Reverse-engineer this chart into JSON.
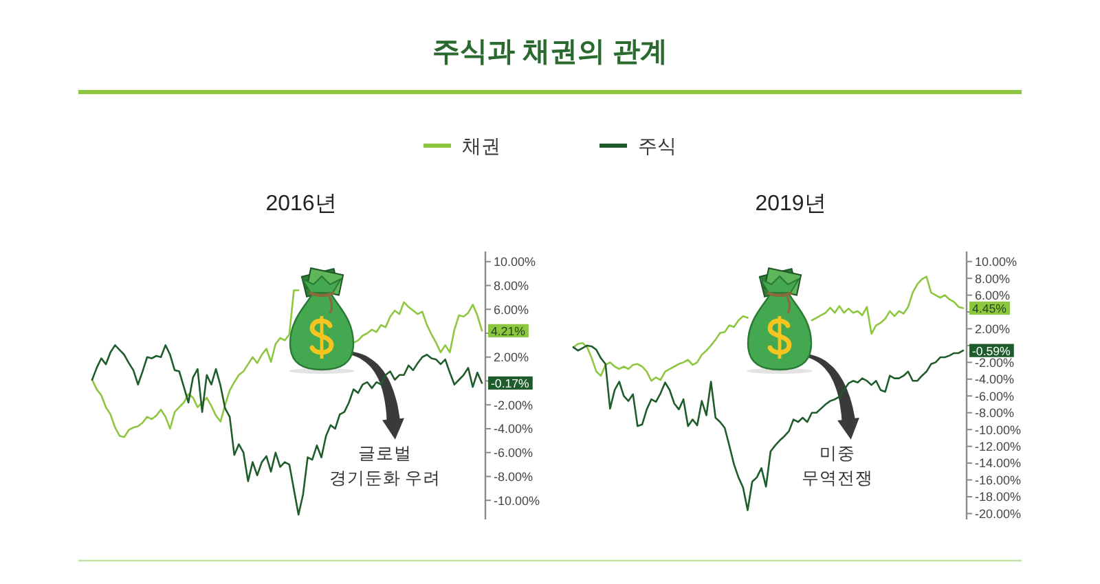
{
  "chart_data": [
    {
      "type": "line",
      "title": "주식과 채권의 관계",
      "subtitle": "2016년",
      "legend": "top",
      "tick_labels": "y",
      "categories": [
        null,
        null,
        null,
        null,
        null,
        null,
        null,
        null,
        null,
        null,
        null,
        null,
        null,
        null,
        null,
        null,
        null,
        null,
        null,
        null,
        null,
        null,
        null,
        null,
        null,
        null,
        null,
        null,
        null,
        null,
        null,
        null,
        null,
        null,
        null,
        null,
        null,
        null,
        null,
        null,
        null,
        null,
        null,
        null,
        null,
        null,
        null,
        null,
        null,
        null,
        null,
        null,
        null,
        null,
        null,
        null,
        null,
        null,
        null,
        null,
        null,
        null,
        null,
        null,
        null,
        null,
        null,
        null,
        null,
        null,
        null,
        null,
        null,
        null,
        null,
        null,
        null,
        null,
        null,
        null,
        null,
        null,
        null,
        null,
        null,
        null
      ],
      "series": [
        {
          "name": "채권",
          "color": "#8dc63f",
          "values": [
            0.1,
            -0.7,
            -1.2,
            -2.2,
            -2.8,
            -3.9,
            -4.6,
            -4.7,
            -4.1,
            -3.9,
            -3.8,
            -3.5,
            -3.0,
            -3.2,
            -2.9,
            -2.4,
            -3.0,
            -4.0,
            -2.6,
            -2.2,
            -1.8,
            -1.1,
            -1.4,
            -2.2,
            -1.8,
            -1.4,
            -2.1,
            -2.9,
            -3.4,
            -2.0,
            -0.8,
            -0.1,
            0.5,
            0.8,
            1.4,
            2.0,
            1.5,
            2.2,
            2.7,
            1.6,
            3.1,
            3.6,
            3.4,
            3.9,
            7.6,
            7.6,
            null,
            null,
            null,
            null,
            null,
            null,
            null,
            null,
            null,
            null,
            null,
            3.2,
            3.4,
            3.8,
            4.0,
            4.3,
            4.1,
            4.7,
            4.5,
            5.4,
            5.9,
            5.6,
            6.6,
            6.2,
            5.9,
            5.6,
            5.8,
            4.7,
            3.9,
            3.2,
            2.4,
            3.0,
            2.4,
            4.3,
            5.5,
            5.4,
            5.7,
            6.4,
            5.5,
            4.21
          ],
          "value_labels": [
            null,
            null,
            null,
            null,
            null,
            null,
            null,
            null,
            null,
            null,
            null,
            null,
            null,
            null,
            null,
            null,
            null,
            null,
            null,
            null,
            null,
            null,
            null,
            null,
            null,
            null,
            null,
            null,
            null,
            null,
            null,
            null,
            null,
            null,
            null,
            null,
            null,
            null,
            null,
            null,
            null,
            null,
            null,
            null,
            null,
            null,
            null,
            null,
            null,
            null,
            null,
            null,
            null,
            null,
            null,
            null,
            null,
            null,
            null,
            null,
            null,
            null,
            null,
            null,
            null,
            null,
            null,
            null,
            null,
            null,
            null,
            null,
            null,
            null,
            null,
            null,
            null,
            null,
            null,
            null,
            null,
            null,
            null,
            null,
            null,
            "4.21%"
          ]
        },
        {
          "name": "주식",
          "color": "#1e5c2b",
          "values": [
            0.1,
            1.1,
            1.9,
            1.4,
            2.4,
            3.0,
            2.6,
            2.2,
            1.5,
            0.9,
            -0.3,
            0.8,
            2.0,
            1.9,
            2.1,
            2.0,
            3.0,
            2.2,
            0.9,
            0.8,
            -0.5,
            -1.8,
            0.3,
            1.0,
            -2.6,
            0.5,
            -0.3,
            1.0,
            -0.4,
            -2.3,
            -3.0,
            -6.2,
            -5.3,
            -6.0,
            -8.4,
            -6.8,
            -7.9,
            -6.8,
            -6.3,
            -7.6,
            -6.0,
            -7.2,
            -6.8,
            -7.0,
            -9.1,
            -11.2,
            -9.5,
            -6.4,
            -6.6,
            -5.4,
            -6.4,
            -4.6,
            -3.7,
            -4.0,
            -2.8,
            -2.6,
            -1.8,
            -0.7,
            -1.0,
            -0.3,
            -0.1,
            -0.6,
            -0.1,
            -0.3,
            0.5,
            0.8,
            0.1,
            0.5,
            0.5,
            1.3,
            0.9,
            1.5,
            2.0,
            2.2,
            1.9,
            1.8,
            1.4,
            1.8,
            0.7,
            -0.3,
            0.1,
            0.5,
            1.1,
            -0.5,
            0.7,
            -0.17
          ],
          "value_labels": [
            null,
            null,
            null,
            null,
            null,
            null,
            null,
            null,
            null,
            null,
            null,
            null,
            null,
            null,
            null,
            null,
            null,
            null,
            null,
            null,
            null,
            null,
            null,
            null,
            null,
            null,
            null,
            null,
            null,
            null,
            null,
            null,
            null,
            null,
            null,
            null,
            null,
            null,
            null,
            null,
            null,
            null,
            null,
            null,
            null,
            null,
            null,
            null,
            null,
            null,
            null,
            null,
            null,
            null,
            null,
            null,
            null,
            null,
            null,
            null,
            null,
            null,
            null,
            null,
            null,
            null,
            null,
            null,
            null,
            null,
            null,
            null,
            null,
            null,
            null,
            null,
            null,
            null,
            null,
            null,
            null,
            null,
            null,
            null,
            null,
            "-0.17%"
          ]
        }
      ],
      "ylim": [
        -11.6,
        10.85
      ],
      "yticks": [
        {
          "value": 10,
          "label": "10.00%"
        },
        {
          "value": 8,
          "label": "8.00%"
        },
        {
          "value": 6,
          "label": "6.00%"
        },
        {
          "value": 4,
          "label": null
        },
        {
          "value": 2,
          "label": "2.00%"
        },
        {
          "value": 0,
          "label": null
        },
        {
          "value": -2,
          "label": "-2.00%"
        },
        {
          "value": -4,
          "label": "-4.00%"
        },
        {
          "value": -6,
          "label": "-6.00%"
        },
        {
          "value": -8,
          "label": "-8.00%"
        },
        {
          "value": -10,
          "label": "-10.00%"
        }
      ],
      "annotations": [
        "글로벌\n경기둔화 우려"
      ]
    },
    {
      "type": "line",
      "subtitle": "2019년",
      "tick_labels": "y",
      "categories": [
        null,
        null,
        null,
        null,
        null,
        null,
        null,
        null,
        null,
        null,
        null,
        null,
        null,
        null,
        null,
        null,
        null,
        null,
        null,
        null,
        null,
        null,
        null,
        null,
        null,
        null,
        null,
        null,
        null,
        null,
        null,
        null,
        null,
        null,
        null,
        null,
        null,
        null,
        null,
        null,
        null,
        null,
        null,
        null,
        null,
        null,
        null,
        null,
        null,
        null,
        null,
        null,
        null,
        null,
        null,
        null,
        null,
        null,
        null,
        null,
        null,
        null,
        null,
        null,
        null,
        null,
        null,
        null,
        null,
        null,
        null,
        null,
        null,
        null,
        null,
        null,
        null,
        null,
        null,
        null,
        null,
        null,
        null,
        null,
        null,
        null
      ],
      "series": [
        {
          "name": "채권",
          "color": "#8dc63f",
          "values": [
            -0.2,
            0.2,
            0.3,
            -0.2,
            -1.5,
            -3.1,
            -3.6,
            -2.3,
            -2.0,
            -2.5,
            -2.8,
            -2.5,
            -2.8,
            -2.3,
            -2.2,
            -2.5,
            -3.1,
            -4.2,
            -3.8,
            -4.1,
            -3.1,
            -2.8,
            -2.5,
            -2.2,
            -2.0,
            -1.7,
            -2.3,
            -2.0,
            -1.1,
            -0.6,
            0.0,
            0.7,
            1.5,
            1.6,
            2.4,
            2.2,
            3.0,
            3.5,
            3.3,
            null,
            null,
            null,
            null,
            null,
            null,
            null,
            null,
            null,
            null,
            null,
            null,
            null,
            3.0,
            3.3,
            3.6,
            3.9,
            4.5,
            3.9,
            4.7,
            3.9,
            4.4,
            3.9,
            4.1,
            3.6,
            4.6,
            1.4,
            2.4,
            2.7,
            3.2,
            4.1,
            3.5,
            4.1,
            3.8,
            4.6,
            6.3,
            7.3,
            7.9,
            8.2,
            6.3,
            6.0,
            5.7,
            6.0,
            5.5,
            5.2,
            4.6,
            4.45
          ],
          "value_labels": [
            null,
            null,
            null,
            null,
            null,
            null,
            null,
            null,
            null,
            null,
            null,
            null,
            null,
            null,
            null,
            null,
            null,
            null,
            null,
            null,
            null,
            null,
            null,
            null,
            null,
            null,
            null,
            null,
            null,
            null,
            null,
            null,
            null,
            null,
            null,
            null,
            null,
            null,
            null,
            null,
            null,
            null,
            null,
            null,
            null,
            null,
            null,
            null,
            null,
            null,
            null,
            null,
            null,
            null,
            null,
            null,
            null,
            null,
            null,
            null,
            null,
            null,
            null,
            null,
            null,
            null,
            null,
            null,
            null,
            null,
            null,
            null,
            null,
            null,
            null,
            null,
            null,
            null,
            null,
            null,
            null,
            null,
            null,
            null,
            null,
            "4.45%"
          ]
        },
        {
          "name": "주식",
          "color": "#1e5c2b",
          "values": [
            -0.2,
            -0.6,
            -0.3,
            0.0,
            -0.1,
            -0.5,
            -1.5,
            -2.2,
            -7.5,
            -5.3,
            -4.3,
            -6.0,
            -6.6,
            -5.8,
            -9.6,
            -9.4,
            -7.6,
            -6.4,
            -6.7,
            -5.7,
            -4.4,
            -5.3,
            -6.9,
            -7.6,
            -6.4,
            -9.6,
            -8.8,
            -9.5,
            -6.6,
            -8.3,
            -4.3,
            -8.6,
            -9.1,
            -9.8,
            -11.9,
            -14.1,
            -15.7,
            -16.9,
            -19.6,
            -16.2,
            -15.7,
            -14.6,
            -16.8,
            -12.6,
            -11.9,
            -11.3,
            -10.8,
            -10.2,
            -8.8,
            -9.1,
            -8.6,
            -9.1,
            -8.0,
            -8.0,
            -7.5,
            -7.0,
            -6.6,
            -6.4,
            -6.1,
            -5.3,
            -4.5,
            -4.2,
            -4.4,
            -3.9,
            -4.2,
            -4.7,
            -4.2,
            -5.3,
            -5.5,
            -3.6,
            -3.9,
            -3.9,
            -3.6,
            -3.1,
            -4.2,
            -4.2,
            -3.6,
            -3.1,
            -2.2,
            -2.0,
            -1.4,
            -1.4,
            -1.2,
            -0.9,
            -0.9,
            -0.59
          ],
          "value_labels": [
            null,
            null,
            null,
            null,
            null,
            null,
            null,
            null,
            null,
            null,
            null,
            null,
            null,
            null,
            null,
            null,
            null,
            null,
            null,
            null,
            null,
            null,
            null,
            null,
            null,
            null,
            null,
            null,
            null,
            null,
            null,
            null,
            null,
            null,
            null,
            null,
            null,
            null,
            null,
            null,
            null,
            null,
            null,
            null,
            null,
            null,
            null,
            null,
            null,
            null,
            null,
            null,
            null,
            null,
            null,
            null,
            null,
            null,
            null,
            null,
            null,
            null,
            null,
            null,
            null,
            null,
            null,
            null,
            null,
            null,
            null,
            null,
            null,
            null,
            null,
            null,
            null,
            null,
            null,
            null,
            null,
            null,
            null,
            null,
            null,
            "-0.59%"
          ]
        }
      ],
      "ylim": [
        -20.7,
        11.2
      ],
      "yticks": [
        {
          "value": 10,
          "label": "10.00%"
        },
        {
          "value": 8,
          "label": "8.00%"
        },
        {
          "value": 6,
          "label": "6.00%"
        },
        {
          "value": 4,
          "label": null
        },
        {
          "value": 2,
          "label": "2.00%"
        },
        {
          "value": 0,
          "label": null
        },
        {
          "value": -2,
          "label": "-2.00%"
        },
        {
          "value": -4,
          "label": "-4.00%"
        },
        {
          "value": -6,
          "label": "-6.00%"
        },
        {
          "value": -8,
          "label": "-8.00%"
        },
        {
          "value": -10,
          "label": "-10.00%"
        },
        {
          "value": -12,
          "label": "-12.00%"
        },
        {
          "value": -14,
          "label": "-14.00%"
        },
        {
          "value": -16,
          "label": "-16.00%"
        },
        {
          "value": -18,
          "label": "-18.00%"
        },
        {
          "value": -20,
          "label": "-20.00%"
        }
      ],
      "annotations": [
        "미중\n무역전쟁"
      ]
    }
  ]
}
